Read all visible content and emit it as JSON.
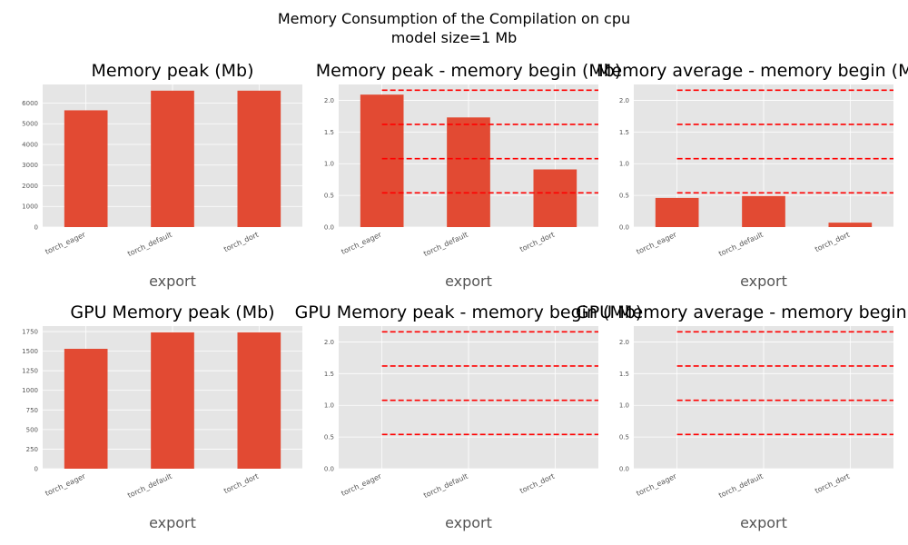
{
  "figure": {
    "title_line1": "Memory Consumption of the Compilation on cpu",
    "title_line2": "model size=1 Mb"
  },
  "colors": {
    "background": "#e5e5e5",
    "grid": "#ffffff",
    "bar": "#e24a33",
    "reference_line": "#ff0000",
    "tick_text": "#555555"
  },
  "chart_data": [
    {
      "type": "bar",
      "title": "Memory peak (Mb)",
      "xlabel": "export",
      "categories": [
        "torch_eager",
        "torch_default",
        "torch_dort"
      ],
      "values": [
        5650,
        6600,
        6600
      ],
      "ylim": [
        0,
        6900
      ],
      "yticks": [
        0,
        1000,
        2000,
        3000,
        4000,
        5000,
        6000
      ],
      "ytick_labels": [
        "0",
        "1000",
        "2000",
        "3000",
        "4000",
        "5000",
        "6000"
      ],
      "hlines": [],
      "grid": true
    },
    {
      "type": "bar",
      "title": "Memory peak - memory begin (Mb)",
      "xlabel": "export",
      "categories": [
        "torch_eager",
        "torch_default",
        "torch_dort"
      ],
      "values": [
        2.09,
        1.73,
        0.91
      ],
      "ylim": [
        0,
        2.25
      ],
      "yticks": [
        0,
        0.5,
        1.0,
        1.5,
        2.0
      ],
      "ytick_labels": [
        "0.0",
        "0.5",
        "1.0",
        "1.5",
        "2.0"
      ],
      "hlines": [
        0.54,
        1.08,
        1.62,
        2.16
      ],
      "grid": true
    },
    {
      "type": "bar",
      "title": "Memory average - memory begin (Mb)",
      "xlabel": "export",
      "categories": [
        "torch_eager",
        "torch_default",
        "torch_dort"
      ],
      "values": [
        0.46,
        0.49,
        0.07
      ],
      "ylim": [
        0,
        2.25
      ],
      "yticks": [
        0,
        0.5,
        1.0,
        1.5,
        2.0
      ],
      "ytick_labels": [
        "0.0",
        "0.5",
        "1.0",
        "1.5",
        "2.0"
      ],
      "hlines": [
        0.54,
        1.08,
        1.62,
        2.16
      ],
      "grid": true
    },
    {
      "type": "bar",
      "title": "GPU Memory peak (Mb)",
      "xlabel": "export",
      "categories": [
        "torch_eager",
        "torch_default",
        "torch_dort"
      ],
      "values": [
        1530,
        1740,
        1740
      ],
      "ylim": [
        0,
        1820
      ],
      "yticks": [
        0,
        250,
        500,
        750,
        1000,
        1250,
        1500,
        1750
      ],
      "ytick_labels": [
        "0",
        "250",
        "500",
        "750",
        "1000",
        "1250",
        "1500",
        "1750"
      ],
      "hlines": [],
      "grid": true
    },
    {
      "type": "bar",
      "title": "GPU Memory peak - memory begin (Mb)",
      "xlabel": "export",
      "categories": [
        "torch_eager",
        "torch_default",
        "torch_dort"
      ],
      "values": [
        0,
        0,
        0
      ],
      "ylim": [
        0,
        2.25
      ],
      "yticks": [
        0,
        0.5,
        1.0,
        1.5,
        2.0
      ],
      "ytick_labels": [
        "0.0",
        "0.5",
        "1.0",
        "1.5",
        "2.0"
      ],
      "hlines": [
        0.54,
        1.08,
        1.62,
        2.16
      ],
      "grid": true
    },
    {
      "type": "bar",
      "title": "GPU Memory average - memory begin (Mb)",
      "xlabel": "export",
      "categories": [
        "torch_eager",
        "torch_default",
        "torch_dort"
      ],
      "values": [
        0,
        0,
        0
      ],
      "ylim": [
        0,
        2.25
      ],
      "yticks": [
        0,
        0.5,
        1.0,
        1.5,
        2.0
      ],
      "ytick_labels": [
        "0.0",
        "0.5",
        "1.0",
        "1.5",
        "2.0"
      ],
      "hlines": [
        0.54,
        1.08,
        1.62,
        2.16
      ],
      "grid": true
    }
  ]
}
